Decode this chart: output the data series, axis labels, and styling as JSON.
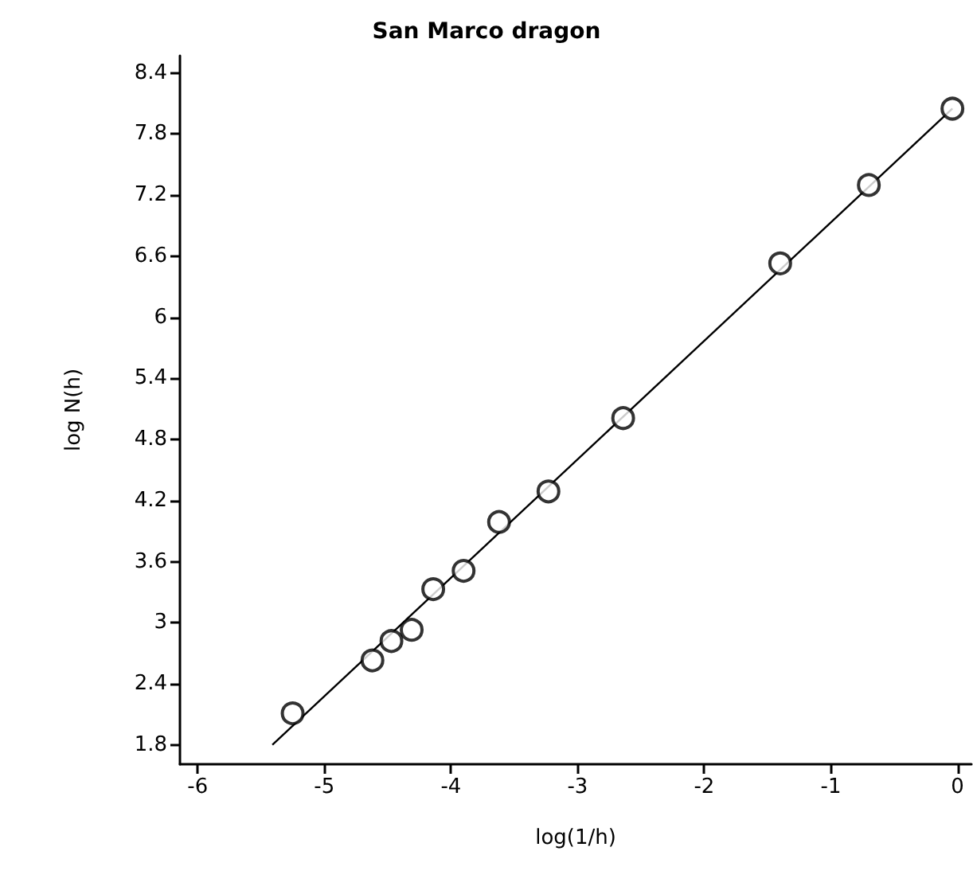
{
  "chart_data": {
    "type": "scatter",
    "title": "San Marco dragon",
    "xlabel": "log(1/h)",
    "ylabel": "log N(h)",
    "series": [
      {
        "color": "#000000",
        "marker": "circle",
        "x": [
          -5.25,
          -4.62,
          -4.47,
          -4.31,
          -4.14,
          -3.9,
          -3.62,
          -3.23,
          -2.64,
          -1.4,
          -0.7,
          -0.04
        ],
        "values": [
          2.11,
          2.63,
          2.82,
          2.93,
          3.33,
          3.51,
          3.99,
          4.29,
          5.01,
          6.53,
          7.3,
          8.05
        ]
      },
      {
        "type": "line",
        "color": "#000000",
        "marker": "none",
        "line_style": "solid",
        "x": [
          -5.41,
          -0.04
        ],
        "values": [
          1.8,
          8.05
        ]
      }
    ],
    "xlim": [
      -6.14,
      0.11
    ],
    "xticks": [
      -6,
      -5,
      -4,
      -3,
      -2,
      -1,
      0
    ],
    "ylim": [
      1.61,
      8.57
    ],
    "yticks": [
      1.8,
      2.4,
      3,
      3.6,
      4.2,
      4.8,
      5.4,
      6,
      6.6,
      7.2,
      7.8,
      8.4
    ],
    "grid": false
  }
}
